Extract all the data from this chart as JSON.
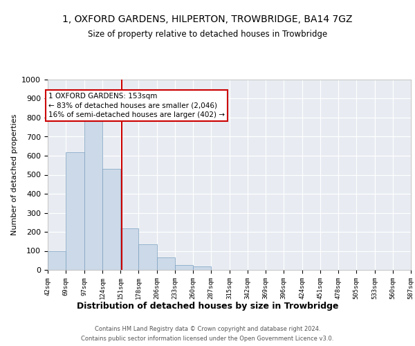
{
  "title": "1, OXFORD GARDENS, HILPERTON, TROWBRIDGE, BA14 7GZ",
  "subtitle": "Size of property relative to detached houses in Trowbridge",
  "xlabel": "Distribution of detached houses by size in Trowbridge",
  "ylabel": "Number of detached properties",
  "bar_color": "#ccd9e8",
  "bar_edgecolor": "#7aa0c0",
  "bg_color": "#e8ecf2",
  "grid_color": "white",
  "vline_x": 153,
  "vline_color": "#cc0000",
  "annotation_text": "1 OXFORD GARDENS: 153sqm\n← 83% of detached houses are smaller (2,046)\n16% of semi-detached houses are larger (402) →",
  "annotation_box_color": "#cc0000",
  "bin_edges": [
    42,
    69,
    97,
    124,
    151,
    178,
    206,
    233,
    260,
    287,
    315,
    342,
    369,
    396,
    424,
    451,
    478,
    505,
    533,
    560,
    587
  ],
  "bar_heights": [
    100,
    620,
    790,
    530,
    220,
    135,
    65,
    25,
    20,
    0,
    0,
    0,
    0,
    0,
    0,
    0,
    0,
    0,
    0,
    0
  ],
  "ylim": [
    0,
    1000
  ],
  "yticks": [
    0,
    100,
    200,
    300,
    400,
    500,
    600,
    700,
    800,
    900,
    1000
  ],
  "footer_line1": "Contains HM Land Registry data © Crown copyright and database right 2024.",
  "footer_line2": "Contains public sector information licensed under the Open Government Licence v3.0."
}
